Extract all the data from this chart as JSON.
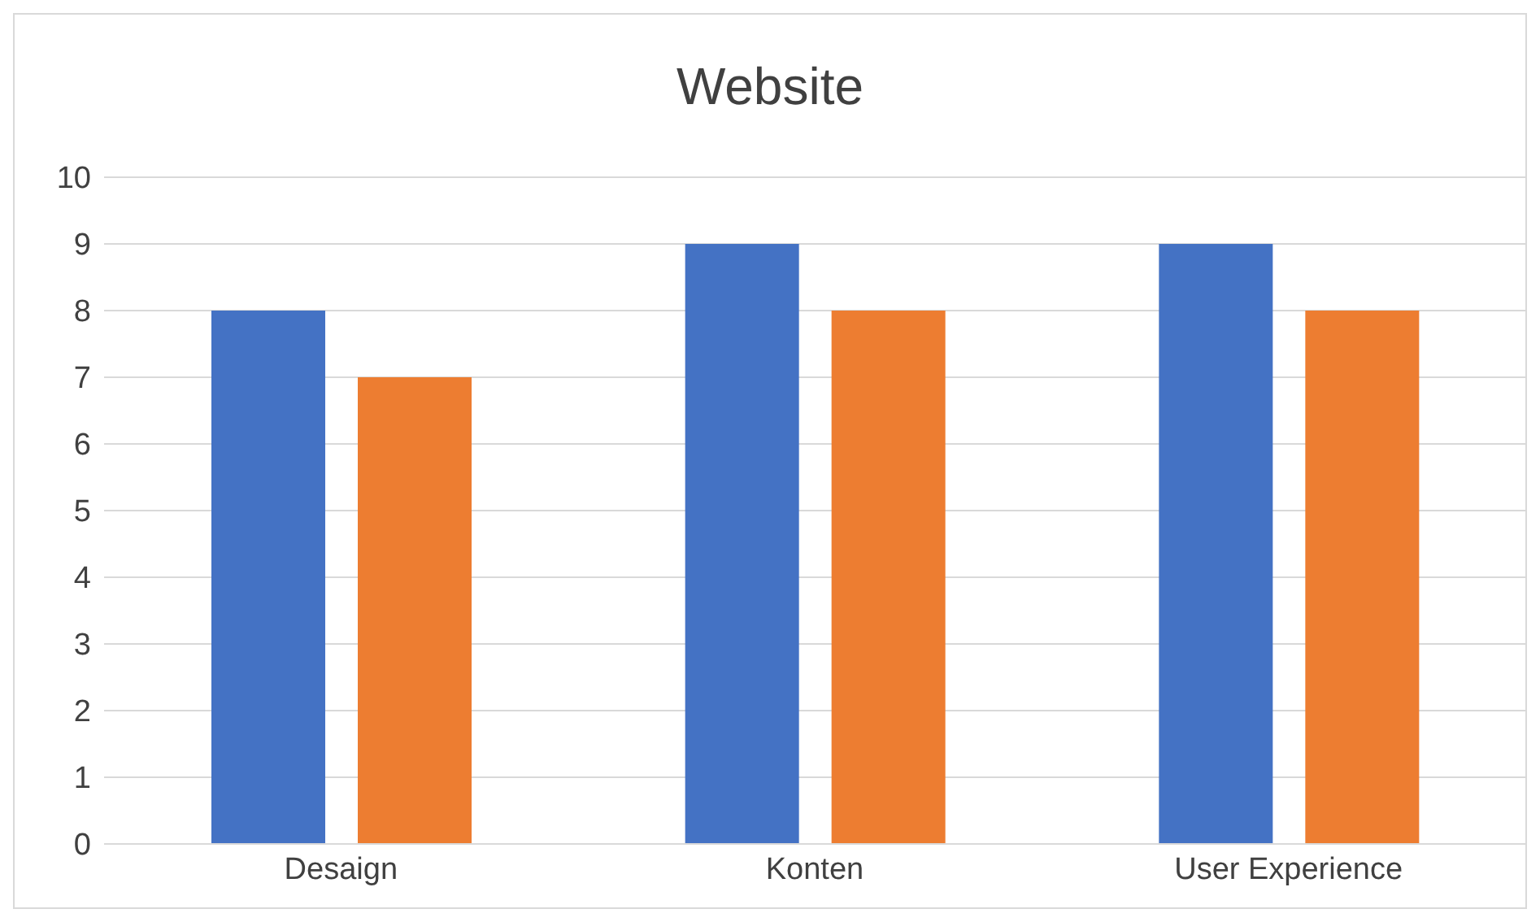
{
  "chart_data": {
    "type": "bar",
    "title": "Website",
    "categories": [
      "Desaign",
      "Konten",
      "User Experience"
    ],
    "series": [
      {
        "color": "#4472c4",
        "values": [
          8,
          9,
          9
        ]
      },
      {
        "color": "#ed7d31",
        "values": [
          7,
          8,
          8
        ]
      }
    ],
    "ylim": [
      0,
      10
    ],
    "yticks": [
      0,
      1,
      2,
      3,
      4,
      5,
      6,
      7,
      8,
      9,
      10
    ],
    "grid": "y",
    "legend": false
  }
}
